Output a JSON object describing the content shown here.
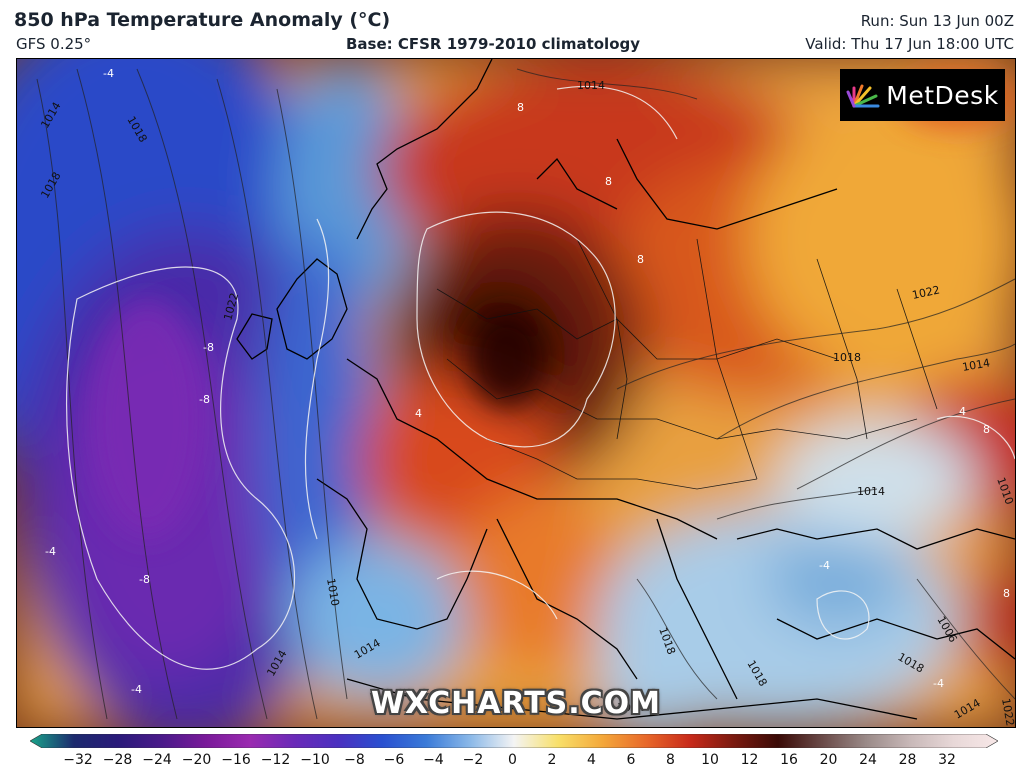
{
  "header": {
    "title": "850 hPa Temperature Anomaly (°C)",
    "model": "GFS 0.25°",
    "base": "Base: CFSR 1979-2010 climatology",
    "run": "Run: Sun 13 Jun 00Z",
    "valid": "Valid: Thu 17 Jun 18:00 UTC"
  },
  "logo": {
    "text": "MetDesk",
    "icon": "sunburst-logo-icon"
  },
  "watermark": "WXCHARTS.COM",
  "colorbar": {
    "ticks": [
      "−32",
      "−28",
      "−24",
      "−20",
      "−16",
      "−12",
      "−10",
      "−8",
      "−6",
      "−4",
      "−2",
      "0",
      "2",
      "4",
      "6",
      "8",
      "10",
      "12",
      "16",
      "20",
      "24",
      "28",
      "32"
    ],
    "colors": [
      "#1aa58a",
      "#1c2a6e",
      "#2a1a7a",
      "#4a1a8a",
      "#7a1a9a",
      "#9a2ab0",
      "#6a2ab8",
      "#4a30c0",
      "#2a50d0",
      "#3a7ad8",
      "#8ab8e8",
      "#f4f4f4",
      "#f8e06a",
      "#f4a83a",
      "#e8682a",
      "#c82a1a",
      "#7a1a10",
      "#3a0a06",
      "#6a4a48",
      "#9a8a88",
      "#c8b8b8",
      "#e8d8d8",
      "#f8e8e8"
    ]
  },
  "map": {
    "isobar_labels": [
      "1014",
      "1018",
      "1022",
      "1022",
      "1018",
      "1014",
      "1014",
      "1018",
      "1010",
      "1006",
      "1014",
      "1010",
      "1014",
      "1022",
      "1018",
      "1018",
      "1014",
      "1014",
      "1018",
      "1014"
    ],
    "anomaly_labels": [
      "-4",
      "-8",
      "-8",
      "-8",
      "-4",
      "-4",
      "8",
      "8",
      "8",
      "8",
      "8",
      "-4",
      "4",
      "-4",
      "4"
    ]
  }
}
